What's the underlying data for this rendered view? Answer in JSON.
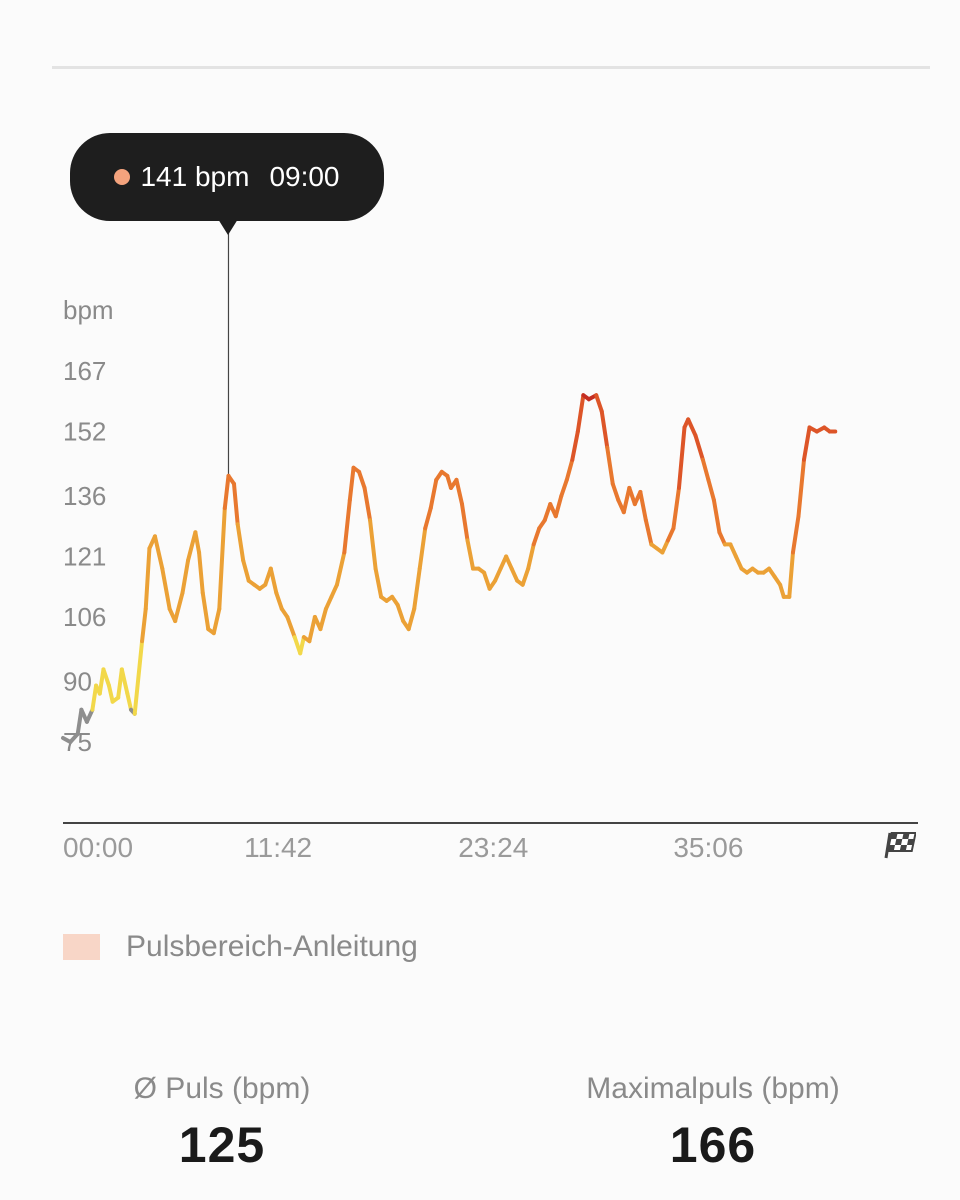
{
  "tooltip": {
    "value": "141 bpm",
    "time": "09:00",
    "dot_color": "#f4a37d"
  },
  "legend": {
    "label": "Pulsbereich-Anleitung",
    "swatch_color": "#f8d6c7"
  },
  "stats": {
    "avg_label": "Ø Puls (bpm)",
    "avg_value": "125",
    "max_label": "Maximalpuls (bpm)",
    "max_value": "166"
  },
  "chart_data": {
    "type": "line",
    "ylabel": "bpm",
    "y_ticks": [
      "167",
      "152",
      "136",
      "121",
      "106",
      "90",
      "75"
    ],
    "x_ticks": [
      "00:00",
      "11:42",
      "23:24",
      "35:06"
    ],
    "x_unit": "minutes",
    "xlim": [
      0,
      46.5
    ],
    "ylim": [
      65,
      175
    ],
    "highlight": {
      "x": 9.0,
      "y": 141
    },
    "end_marker_icon": "checkered-flag-icon",
    "zones": [
      {
        "max": 85,
        "color": "#8e8e8e"
      },
      {
        "max": 100,
        "color": "#f2d84a"
      },
      {
        "max": 125,
        "color": "#eba136"
      },
      {
        "max": 145,
        "color": "#e8782f"
      },
      {
        "max": 160,
        "color": "#dd5528"
      },
      {
        "max": 999,
        "color": "#c42e22"
      }
    ],
    "points": [
      [
        0,
        76
      ],
      [
        0.4,
        75
      ],
      [
        0.8,
        77
      ],
      [
        1.0,
        83
      ],
      [
        1.3,
        80
      ],
      [
        1.6,
        83
      ],
      [
        1.8,
        89
      ],
      [
        2.0,
        87
      ],
      [
        2.2,
        93
      ],
      [
        2.5,
        89
      ],
      [
        2.7,
        85
      ],
      [
        3.0,
        86
      ],
      [
        3.2,
        93
      ],
      [
        3.5,
        87
      ],
      [
        3.7,
        83
      ],
      [
        3.9,
        82
      ],
      [
        4.3,
        100
      ],
      [
        4.5,
        108
      ],
      [
        4.7,
        123
      ],
      [
        5.0,
        126
      ],
      [
        5.4,
        118
      ],
      [
        5.8,
        108
      ],
      [
        6.1,
        105
      ],
      [
        6.5,
        112
      ],
      [
        6.8,
        120
      ],
      [
        7.2,
        127
      ],
      [
        7.4,
        122
      ],
      [
        7.6,
        112
      ],
      [
        7.9,
        103
      ],
      [
        8.2,
        102
      ],
      [
        8.5,
        108
      ],
      [
        8.8,
        133
      ],
      [
        9.0,
        141
      ],
      [
        9.3,
        139
      ],
      [
        9.5,
        129
      ],
      [
        9.8,
        120
      ],
      [
        10.1,
        115
      ],
      [
        10.4,
        114
      ],
      [
        10.7,
        113
      ],
      [
        11.0,
        114
      ],
      [
        11.3,
        118
      ],
      [
        11.6,
        112
      ],
      [
        11.9,
        108
      ],
      [
        12.2,
        106
      ],
      [
        12.6,
        101
      ],
      [
        12.9,
        97
      ],
      [
        13.1,
        101
      ],
      [
        13.4,
        100
      ],
      [
        13.7,
        106
      ],
      [
        14.0,
        103
      ],
      [
        14.3,
        108
      ],
      [
        14.6,
        111
      ],
      [
        14.9,
        114
      ],
      [
        15.3,
        122
      ],
      [
        15.6,
        135
      ],
      [
        15.8,
        143
      ],
      [
        16.1,
        142
      ],
      [
        16.4,
        138
      ],
      [
        16.7,
        130
      ],
      [
        17.0,
        118
      ],
      [
        17.3,
        111
      ],
      [
        17.6,
        110
      ],
      [
        17.9,
        111
      ],
      [
        18.2,
        109
      ],
      [
        18.5,
        105
      ],
      [
        18.8,
        103
      ],
      [
        19.1,
        108
      ],
      [
        19.4,
        118
      ],
      [
        19.7,
        128
      ],
      [
        20.0,
        133
      ],
      [
        20.3,
        140
      ],
      [
        20.6,
        142
      ],
      [
        20.9,
        141
      ],
      [
        21.1,
        138
      ],
      [
        21.4,
        140
      ],
      [
        21.7,
        134
      ],
      [
        22.0,
        125
      ],
      [
        22.3,
        118
      ],
      [
        22.6,
        118
      ],
      [
        22.9,
        117
      ],
      [
        23.2,
        113
      ],
      [
        23.5,
        115
      ],
      [
        23.8,
        118
      ],
      [
        24.1,
        121
      ],
      [
        24.4,
        118
      ],
      [
        24.7,
        115
      ],
      [
        25.0,
        114
      ],
      [
        25.3,
        118
      ],
      [
        25.6,
        124
      ],
      [
        25.9,
        128
      ],
      [
        26.2,
        130
      ],
      [
        26.5,
        134
      ],
      [
        26.8,
        131
      ],
      [
        27.1,
        136
      ],
      [
        27.4,
        140
      ],
      [
        27.7,
        145
      ],
      [
        28.0,
        152
      ],
      [
        28.3,
        161
      ],
      [
        28.6,
        160
      ],
      [
        29.0,
        161
      ],
      [
        29.3,
        157
      ],
      [
        29.6,
        148
      ],
      [
        29.9,
        139
      ],
      [
        30.2,
        135
      ],
      [
        30.5,
        132
      ],
      [
        30.8,
        138
      ],
      [
        31.1,
        134
      ],
      [
        31.4,
        137
      ],
      [
        31.7,
        130
      ],
      [
        32.0,
        124
      ],
      [
        32.3,
        123
      ],
      [
        32.6,
        122
      ],
      [
        32.9,
        125
      ],
      [
        33.2,
        128
      ],
      [
        33.5,
        138
      ],
      [
        33.8,
        153
      ],
      [
        34.0,
        155
      ],
      [
        34.4,
        151
      ],
      [
        34.8,
        145
      ],
      [
        35.1,
        140
      ],
      [
        35.4,
        135
      ],
      [
        35.7,
        127
      ],
      [
        36.0,
        124
      ],
      [
        36.3,
        124
      ],
      [
        36.6,
        121
      ],
      [
        36.9,
        118
      ],
      [
        37.2,
        117
      ],
      [
        37.5,
        118
      ],
      [
        37.8,
        117
      ],
      [
        38.1,
        117
      ],
      [
        38.4,
        118
      ],
      [
        38.7,
        116
      ],
      [
        39.0,
        114
      ],
      [
        39.2,
        111
      ],
      [
        39.5,
        111
      ],
      [
        39.7,
        122
      ],
      [
        40.0,
        131
      ],
      [
        40.3,
        145
      ],
      [
        40.6,
        153
      ],
      [
        41.0,
        152
      ],
      [
        41.4,
        153
      ],
      [
        41.7,
        152
      ],
      [
        42.0,
        152
      ]
    ]
  }
}
